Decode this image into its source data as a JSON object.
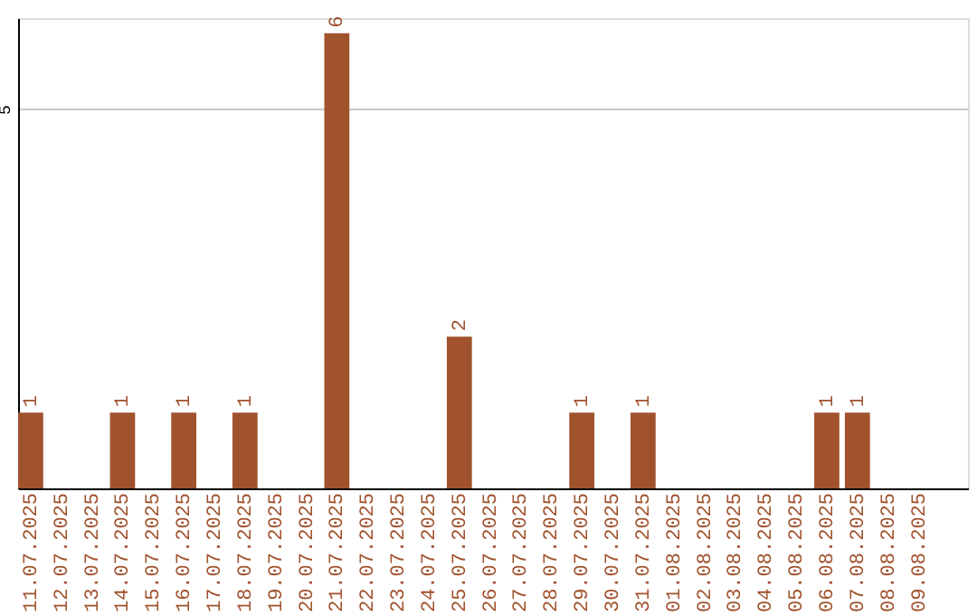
{
  "chart_data": {
    "type": "bar",
    "categories": [
      "11.07.2025",
      "12.07.2025",
      "13.07.2025",
      "14.07.2025",
      "15.07.2025",
      "16.07.2025",
      "17.07.2025",
      "18.07.2025",
      "19.07.2025",
      "20.07.2025",
      "21.07.2025",
      "22.07.2025",
      "23.07.2025",
      "24.07.2025",
      "25.07.2025",
      "26.07.2025",
      "27.07.2025",
      "28.07.2025",
      "29.07.2025",
      "30.07.2025",
      "31.07.2025",
      "01.08.2025",
      "02.08.2025",
      "03.08.2025",
      "04.08.2025",
      "05.08.2025",
      "06.08.2025",
      "07.08.2025",
      "08.08.2025",
      "09.08.2025"
    ],
    "values": [
      1,
      0,
      0,
      1,
      0,
      1,
      0,
      1,
      0,
      0,
      6,
      0,
      0,
      0,
      2,
      0,
      0,
      0,
      1,
      0,
      1,
      0,
      0,
      0,
      0,
      0,
      1,
      1,
      0,
      0
    ],
    "value_labels": [
      "1",
      null,
      null,
      "1",
      null,
      "1",
      null,
      "1",
      null,
      null,
      "6",
      null,
      null,
      null,
      "2",
      null,
      null,
      null,
      "1",
      null,
      "1",
      null,
      null,
      null,
      null,
      null,
      "1",
      "1",
      null,
      null
    ],
    "color": "#a0522d",
    "ylim": [
      0,
      6.2
    ],
    "yticks": [
      5
    ],
    "grid": "y"
  }
}
